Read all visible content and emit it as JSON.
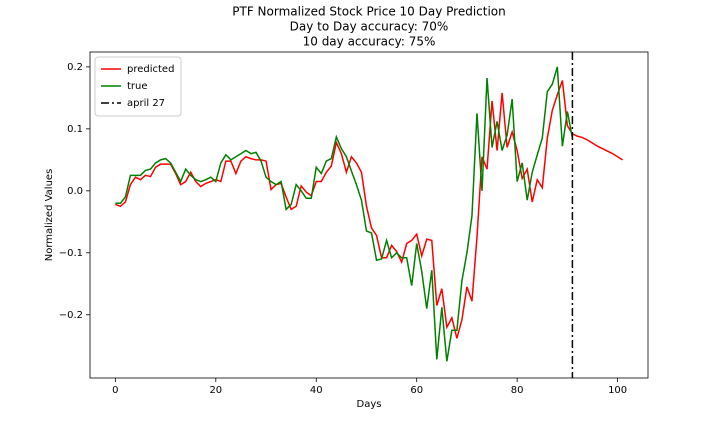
{
  "chart_data": {
    "type": "line",
    "title": [
      "PTF Normalized Stock Price 10 Day Prediction",
      "Day to Day accuracy: 70%",
      "10 day accuracy: 75%"
    ],
    "xlabel": "Days",
    "ylabel": "Normalized Values",
    "x": [
      0,
      1,
      2,
      3,
      4,
      5,
      6,
      7,
      8,
      9,
      10,
      11,
      12,
      13,
      14,
      15,
      16,
      17,
      18,
      19,
      20,
      21,
      22,
      23,
      24,
      25,
      26,
      27,
      28,
      29,
      30,
      31,
      32,
      33,
      34,
      35,
      36,
      37,
      38,
      39,
      40,
      41,
      42,
      43,
      44,
      45,
      46,
      47,
      48,
      49,
      50,
      51,
      52,
      53,
      54,
      55,
      56,
      57,
      58,
      59,
      60,
      61,
      62,
      63,
      64,
      65,
      66,
      67,
      68,
      69,
      70,
      71,
      72,
      73,
      74,
      75,
      76,
      77,
      78,
      79,
      80,
      81,
      82,
      83,
      84,
      85,
      86,
      87,
      88,
      89,
      90,
      91,
      92,
      93,
      94,
      95,
      96,
      97,
      98,
      99,
      100,
      101
    ],
    "series": [
      {
        "name": "predicted",
        "color": "#ff0000",
        "values": [
          -0.022,
          -0.025,
          -0.018,
          0.01,
          0.022,
          0.018,
          0.025,
          0.023,
          0.038,
          0.043,
          0.043,
          0.043,
          0.028,
          0.01,
          0.015,
          0.03,
          0.015,
          0.007,
          0.012,
          0.015,
          0.018,
          0.015,
          0.048,
          0.048,
          0.028,
          0.048,
          0.055,
          0.052,
          0.05,
          0.05,
          0.048,
          0.002,
          0.01,
          0.012,
          -0.01,
          -0.03,
          -0.025,
          0.008,
          -0.002,
          -0.008,
          0.015,
          0.015,
          0.03,
          0.04,
          0.078,
          0.06,
          0.03,
          0.055,
          0.045,
          0.03,
          -0.025,
          -0.06,
          -0.072,
          -0.108,
          -0.108,
          -0.088,
          -0.098,
          -0.115,
          -0.085,
          -0.08,
          -0.07,
          -0.105,
          -0.078,
          -0.08,
          -0.185,
          -0.158,
          -0.22,
          -0.205,
          -0.238,
          -0.208,
          -0.155,
          -0.178,
          -0.075,
          0.055,
          0.035,
          0.145,
          0.065,
          0.158,
          0.07,
          0.095,
          0.065,
          0.02,
          0.035,
          -0.018,
          0.018,
          0.005,
          0.085,
          0.13,
          0.155,
          0.178,
          0.105,
          0.092,
          0.088,
          0.086,
          0.082,
          0.077,
          0.072,
          0.068,
          0.064,
          0.06,
          0.055,
          0.05
        ]
      },
      {
        "name": "true",
        "color": "#008000",
        "values": [
          -0.02,
          -0.02,
          -0.01,
          0.025,
          0.025,
          0.025,
          0.033,
          0.035,
          0.045,
          0.05,
          0.052,
          0.045,
          0.03,
          0.015,
          0.035,
          0.025,
          0.018,
          0.015,
          0.018,
          0.022,
          0.015,
          0.045,
          0.058,
          0.05,
          0.055,
          0.06,
          0.065,
          0.06,
          0.062,
          0.048,
          0.022,
          0.015,
          0.01,
          0.015,
          -0.03,
          -0.022,
          0.01,
          0.0,
          -0.012,
          -0.012,
          0.038,
          0.028,
          0.048,
          0.052,
          0.087,
          0.068,
          0.055,
          0.032,
          0.01,
          -0.015,
          -0.065,
          -0.068,
          -0.112,
          -0.11,
          -0.08,
          -0.108,
          -0.1,
          -0.108,
          -0.108,
          -0.153,
          -0.085,
          -0.13,
          -0.19,
          -0.128,
          -0.272,
          -0.188,
          -0.275,
          -0.225,
          -0.225,
          -0.145,
          -0.1,
          -0.04,
          0.125,
          0.0,
          0.182,
          0.07,
          0.112,
          0.065,
          0.09,
          0.148,
          0.015,
          0.045,
          -0.015,
          0.03,
          0.058,
          0.085,
          0.16,
          0.172,
          0.2,
          0.072,
          0.128,
          0.085,
          null,
          null,
          null,
          null,
          null,
          null,
          null,
          null,
          null,
          null
        ]
      }
    ],
    "vline": {
      "name": "april 27",
      "x": 91,
      "color": "#000000",
      "style": "dashdot"
    },
    "xlim": [
      -5.05,
      106.05
    ],
    "ylim": [
      -0.302,
      0.224
    ],
    "xticks": [
      0,
      20,
      40,
      60,
      80,
      100
    ],
    "yticks": [
      {
        "value": -0.2,
        "label": "−0.2"
      },
      {
        "value": -0.1,
        "label": "−0.1"
      },
      {
        "value": 0,
        "label": "0.0"
      },
      0.1,
      0.2
    ],
    "legend": "upper left",
    "grid": false
  }
}
